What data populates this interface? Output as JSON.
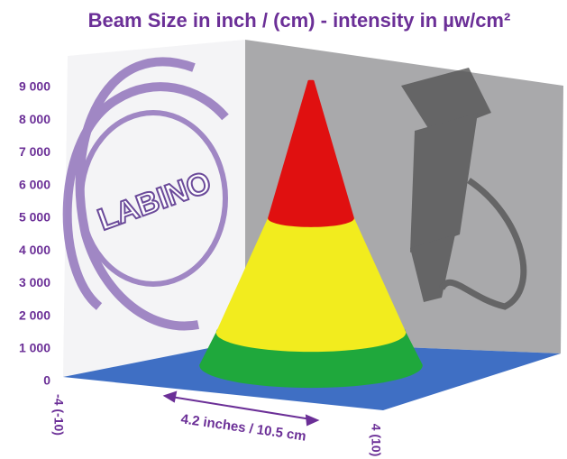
{
  "chart_data": {
    "type": "surface",
    "title": "Beam Size in inch / (cm) - intensity in µw/cm²",
    "ylim": [
      0,
      9000
    ],
    "yticks": [
      0,
      {
        "value": 1000,
        "label": "1 000"
      },
      {
        "value": 2000,
        "label": "2 000"
      },
      {
        "value": 3000,
        "label": "3 000"
      },
      {
        "value": 4000,
        "label": "4 000"
      },
      {
        "value": 5000,
        "label": "5 000"
      },
      {
        "value": 6000,
        "label": "6 000"
      },
      {
        "value": 7000,
        "label": "7 000"
      },
      {
        "value": 8000,
        "label": "8 000"
      },
      {
        "value": 9000,
        "label": "9 000"
      }
    ],
    "levels": [
      500,
      1500,
      5000
    ],
    "colors": [
      "#1fa83c",
      "#f2ec1e",
      "#e01010"
    ],
    "floor_color": "#3f6fc4",
    "peak": 9200,
    "x_left_label": "-4 (-10)",
    "x_right_label": "4 (10)",
    "width_label": "4.2 inches / 10.5 cm",
    "logo": "LABINO"
  }
}
